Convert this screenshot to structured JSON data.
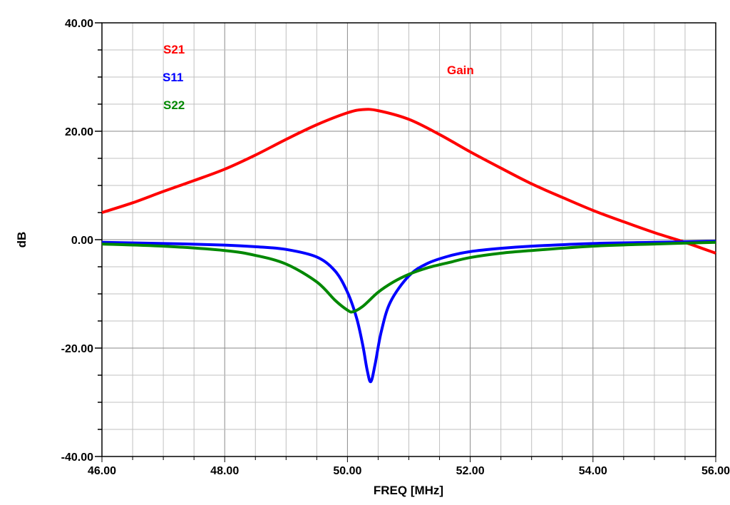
{
  "chart_data": {
    "type": "line",
    "title": "",
    "xlabel": "FREQ [MHz]",
    "ylabel": "dB",
    "xlim": [
      46,
      56
    ],
    "ylim": [
      -40,
      40
    ],
    "grid": true,
    "x_ticks": [
      "46.00",
      "48.00",
      "50.00",
      "52.00",
      "54.00",
      "56.00"
    ],
    "y_ticks": [
      "40.00",
      "20.00",
      "0.00",
      "-20.00",
      "-40.00"
    ],
    "annotation": {
      "text": "Gain",
      "color": "#ff0000"
    },
    "legend_position": "top-left",
    "series": [
      {
        "name": "S21",
        "color": "#ff0000",
        "x": [
          46,
          46.5,
          47,
          47.5,
          48,
          48.5,
          49,
          49.5,
          50,
          50.25,
          50.5,
          51,
          51.5,
          52,
          52.5,
          53,
          53.5,
          54,
          54.5,
          55,
          55.5,
          56
        ],
        "y": [
          5.0,
          6.8,
          8.9,
          10.9,
          13.0,
          15.6,
          18.5,
          21.2,
          23.4,
          24.0,
          23.8,
          22.2,
          19.4,
          16.2,
          13.2,
          10.3,
          7.8,
          5.4,
          3.3,
          1.3,
          -0.5,
          -2.5
        ]
      },
      {
        "name": "S11",
        "color": "#0000ff",
        "x": [
          46,
          47,
          48,
          48.5,
          49,
          49.5,
          49.8,
          50,
          50.15,
          50.25,
          50.32,
          50.38,
          50.45,
          50.55,
          50.7,
          51,
          51.3,
          51.66,
          52,
          52.5,
          53,
          54,
          55,
          56
        ],
        "y": [
          -0.5,
          -0.7,
          -1.0,
          -1.3,
          -1.8,
          -3.2,
          -5.8,
          -9.7,
          -14.5,
          -19.5,
          -24.0,
          -26.2,
          -23.0,
          -17.0,
          -11.5,
          -6.7,
          -4.4,
          -3.0,
          -2.2,
          -1.6,
          -1.2,
          -0.7,
          -0.5,
          -0.3
        ]
      },
      {
        "name": "S22",
        "color": "#008800",
        "x": [
          46,
          47,
          48,
          48.5,
          49,
          49.5,
          49.8,
          50,
          50.09,
          50.25,
          50.5,
          50.75,
          51,
          51.3,
          51.66,
          52,
          52.5,
          53,
          54,
          55,
          56
        ],
        "y": [
          -0.8,
          -1.2,
          -2.0,
          -2.9,
          -4.5,
          -7.8,
          -11.2,
          -13.0,
          -13.3,
          -12.3,
          -9.7,
          -7.8,
          -6.4,
          -5.2,
          -4.2,
          -3.3,
          -2.5,
          -2.0,
          -1.2,
          -0.8,
          -0.5
        ]
      }
    ]
  }
}
